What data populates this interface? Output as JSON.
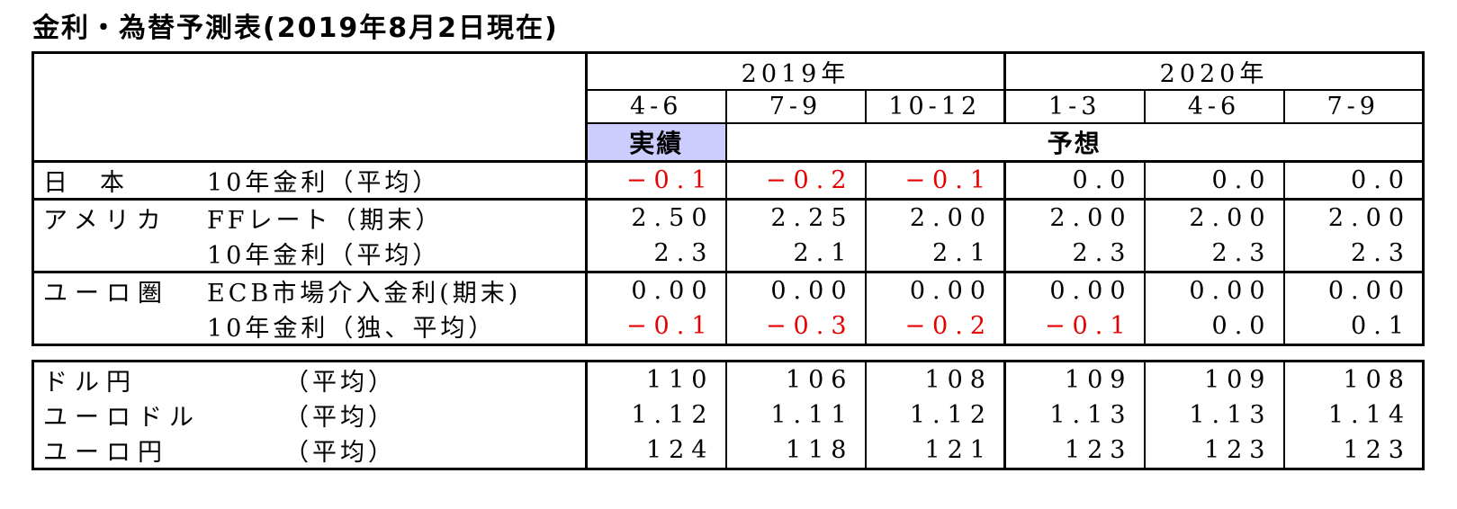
{
  "title": "金利・為替予測表(2019年8月2日現在)",
  "colors": {
    "actual_cell_bg": "#ccccff",
    "negative_value": "#e60000",
    "border": "#000000",
    "background": "#ffffff"
  },
  "rates_table": {
    "year_headers": [
      "2019年",
      "2020年"
    ],
    "quarter_headers": [
      "4-6",
      "7-9",
      "10-12",
      "1-3",
      "4-6",
      "7-9"
    ],
    "actual_label": "実績",
    "forecast_label": "予想",
    "rows": [
      {
        "region": "日本",
        "instrument": "10年金利（平均）",
        "values": [
          "−0.1",
          "−0.2",
          "−0.1",
          "0.0",
          "0.0",
          "0.0"
        ]
      },
      {
        "region": "アメリカ",
        "instrument": "FFレート（期末）",
        "values": [
          "2.50",
          "2.25",
          "2.00",
          "2.00",
          "2.00",
          "2.00"
        ]
      },
      {
        "region": "",
        "instrument": "10年金利（平均）",
        "values": [
          "2.3",
          "2.1",
          "2.1",
          "2.3",
          "2.3",
          "2.3"
        ]
      },
      {
        "region": "ユーロ圏",
        "instrument": "ECB市場介入金利(期末)",
        "values": [
          "0.00",
          "0.00",
          "0.00",
          "0.00",
          "0.00",
          "0.00"
        ]
      },
      {
        "region": "",
        "instrument": "10年金利（独、平均）",
        "values": [
          "−0.1",
          "−0.3",
          "−0.2",
          "−0.1",
          "0.0",
          "0.1"
        ]
      }
    ]
  },
  "fx_table": {
    "rows": [
      {
        "pair": "ドル円",
        "measure": "（平均）",
        "values": [
          "110",
          "106",
          "108",
          "109",
          "109",
          "108"
        ]
      },
      {
        "pair": "ユーロドル",
        "measure": "（平均）",
        "values": [
          "1.12",
          "1.11",
          "1.12",
          "1.13",
          "1.13",
          "1.14"
        ]
      },
      {
        "pair": "ユーロ円",
        "measure": "（平均）",
        "values": [
          "124",
          "118",
          "121",
          "123",
          "123",
          "123"
        ]
      }
    ]
  }
}
